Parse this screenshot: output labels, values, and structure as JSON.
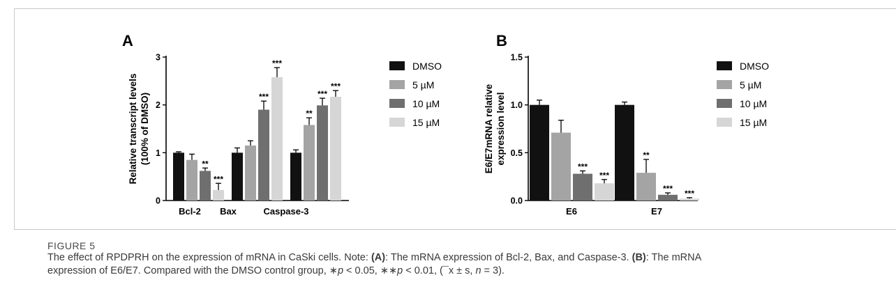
{
  "colors": {
    "DMSO": "#111111",
    "5 µM": "#a4a4a4",
    "10 µM": "#6f6f6f",
    "15 µM": "#d6d6d6",
    "frame": "#c8c8c8"
  },
  "chart_data": [
    {
      "panel": "A",
      "type": "bar",
      "ylabel": "Relative transcript levels\n(100% of DMSO)",
      "xlabel": "",
      "ylim": [
        0,
        3
      ],
      "yticks": [
        0,
        1,
        2,
        3
      ],
      "ytick_labels": [
        "0",
        "1",
        "2",
        "3"
      ],
      "categories": [
        "Bcl-2",
        "Bax",
        "Caspase-3"
      ],
      "legend_placement": "right",
      "series": [
        {
          "name": "DMSO",
          "values": [
            1.0,
            1.0,
            1.0
          ],
          "errors": [
            0.02,
            0.1,
            0.06
          ],
          "sig": [
            "",
            "",
            ""
          ]
        },
        {
          "name": "5 µM",
          "values": [
            0.85,
            1.15,
            1.58
          ],
          "errors": [
            0.12,
            0.1,
            0.15
          ],
          "sig": [
            "",
            "",
            "**"
          ]
        },
        {
          "name": "10 µM",
          "values": [
            0.62,
            1.9,
            1.99
          ],
          "errors": [
            0.06,
            0.18,
            0.15
          ],
          "sig": [
            "**",
            "***",
            "***"
          ]
        },
        {
          "name": "15 µM",
          "values": [
            0.22,
            2.58,
            2.17
          ],
          "errors": [
            0.14,
            0.2,
            0.13
          ],
          "sig": [
            "***",
            "***",
            "***"
          ]
        }
      ]
    },
    {
      "panel": "B",
      "type": "bar",
      "ylabel": "E6/E7mRNA relative\nexpression level",
      "xlabel": "",
      "ylim": [
        0,
        1.5
      ],
      "yticks": [
        0,
        0.5,
        1.0,
        1.5
      ],
      "ytick_labels": [
        "0.0",
        "0.5",
        "1.0",
        "1.5"
      ],
      "categories": [
        "E6",
        "E7"
      ],
      "legend_placement": "right",
      "series": [
        {
          "name": "DMSO",
          "values": [
            1.0,
            1.0
          ],
          "errors": [
            0.05,
            0.03
          ],
          "sig": [
            "",
            ""
          ]
        },
        {
          "name": "5 µM",
          "values": [
            0.71,
            0.29
          ],
          "errors": [
            0.13,
            0.14
          ],
          "sig": [
            "",
            "**"
          ]
        },
        {
          "name": "10 µM",
          "values": [
            0.28,
            0.06
          ],
          "errors": [
            0.03,
            0.02
          ],
          "sig": [
            "***",
            "***"
          ]
        },
        {
          "name": "15 µM",
          "values": [
            0.18,
            0.02
          ],
          "errors": [
            0.04,
            0.01
          ],
          "sig": [
            "***",
            "***"
          ]
        }
      ]
    }
  ],
  "caption": {
    "label": "FIGURE 5",
    "text_parts": {
      "t1": "The effect of RPDPRH on the expression of mRNA in CaSki cells. Note: ",
      "ref_a": "(A)",
      "t2": ": The mRNA expression of Bcl-2, Bax, and Caspase-3. ",
      "ref_b": "(B)",
      "t3": ": The mRNA",
      "t4": "expression of E6/E7. Compared with the DMSO control group, ∗",
      "p1": "p",
      "t5": " < 0.05, ∗∗",
      "p2": "p",
      "t6": " < 0.01, (",
      "xbar": "¯x",
      "t7": " ± s, ",
      "n": "n",
      "t8": " = 3)."
    }
  }
}
